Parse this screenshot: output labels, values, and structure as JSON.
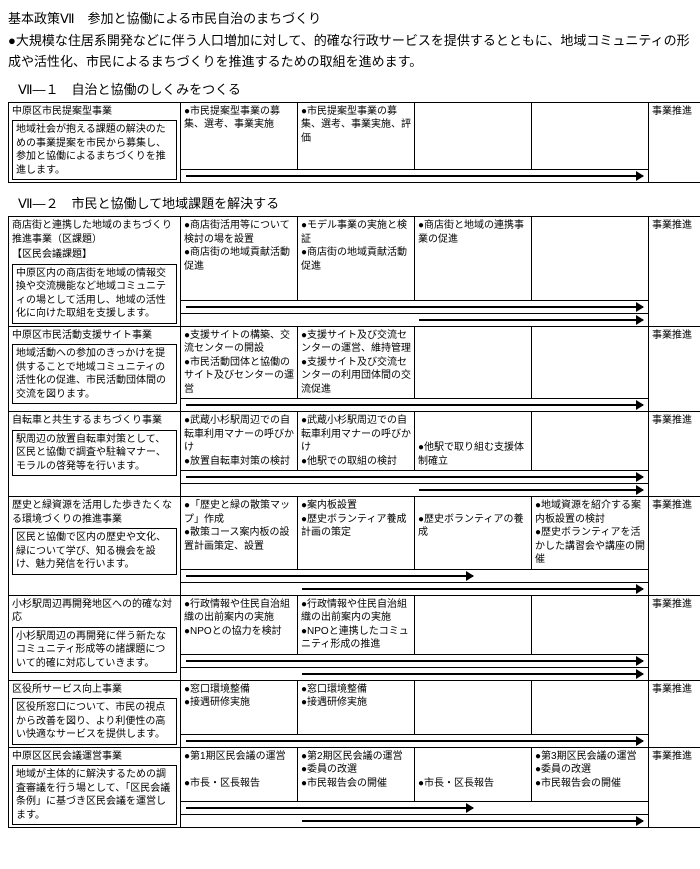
{
  "header": "基本政策Ⅶ　参加と協働による市民自治のまちづくり",
  "intro": "●大規模な住居系開発などに伴う人口増加に対して、的確な行政サービスを提供するとともに、地域コミュニティの形成や活性化、市民によるまちづくりを推進するための取組を進めます。",
  "sub1": "Ⅶ―１　自治と協働のしくみをつくる",
  "sub2": "Ⅶ―２　市民と協働して地域課題を解決する",
  "t1": {
    "rows": [
      {
        "title": "中原区市民提案型事業",
        "desc": "地域社会が抱える課題の解決のための事業提案を市民から募集し、参加と協働によるまちづくりを推進します。",
        "c1": "●市民提案型事業の募集、選考、事業実施",
        "c2": "●市民提案型事業の募集、選考、事業実施、評価",
        "c3": "",
        "c4": "",
        "c5": "事業推進",
        "arrows": [
          {
            "span": "1-5"
          }
        ]
      }
    ]
  },
  "t2": {
    "rows": [
      {
        "title": "商店街と連携した地域のまちづくり推進事業（区課題）",
        "tag": "【区民会議課題】",
        "desc": "中原区内の商店街を地域の情報交換や交流機能など地域コミュニティの場として活用し、地域の活性化に向けた取組を支援します。",
        "c1": "●商店街活用等について検討の場を設置\n●商店街の地域貢献活動促進",
        "c2": "●モデル事業の実施と検証\n●商店街の地域貢献活動促進",
        "c3": "●商店街と地域の連携事業の促進",
        "c4": "",
        "c5": "事業推進",
        "arrows": [
          {
            "span": "1-5"
          },
          {
            "span": "3-5"
          }
        ]
      },
      {
        "title": "中原区市民活動支援サイト事業",
        "desc": "地域活動への参加のきっかけを提供することで地域コミュニティの活性化の促進、市民活動団体間の交流を図ります。",
        "c1": "●支援サイトの構築、交流センターの開設\n●市民活動団体と協働のサイト及びセンターの運営",
        "c2": "●支援サイト及び交流センターの運営、維持管理\n●支援サイト及び交流センターの利用団体間の交流促進",
        "c3": "",
        "c4": "",
        "c5": "事業推進",
        "arrows": [
          {
            "span": "1-5"
          }
        ]
      },
      {
        "title": "自転車と共生するまちづくり事業",
        "desc": "駅周辺の放置自転車対策として、区民と協働で調査や駐輪マナー、モラルの啓発等を行います。",
        "c1": "●武蔵小杉駅周辺での自転車利用マナーの呼びかけ\n●放置自転車対策の検討",
        "c2": "●武蔵小杉駅周辺での自転車利用マナーの呼びかけ\n●他駅での取組の検討",
        "c3": "\n\n●他駅で取り組む支援体制確立",
        "c4": "",
        "c5": "事業推進",
        "arrows": [
          {
            "span": "1-5"
          },
          {
            "span": "3-5"
          }
        ]
      },
      {
        "title": "歴史と緑資源を活用した歩きたくなる環境づくりの推進事業",
        "desc": "区民と協働で区内の歴史や文化、緑について学び、知る機会を設け、魅力発信を行います。",
        "c1": "●「歴史と緑の散策マップ」作成\n●散策コース案内板の設置計画策定、設置",
        "c2": "●案内板設置\n●歴史ボランティア養成計画の策定",
        "c3": "\n●歴史ボランティアの養成",
        "c4": "●地域資源を紹介する案内板設置の検討\n●歴史ボランティアを活かした講習会や講座の開催",
        "c5": "事業推進",
        "arrows": [
          {
            "span": "1-3",
            "short": true
          },
          {
            "span": "2-5"
          }
        ]
      },
      {
        "title": "小杉駅周辺再開発地区への的確な対応",
        "desc": "小杉駅周辺の再開発に伴う新たなコミュニティ形成等の諸課題について的確に対応していきます。",
        "c1": "●行政情報や住民自治組織の出前案内の実施\n●NPOとの協力を検討",
        "c2": "●行政情報や住民自治組織の出前案内の実施\n●NPOと連携したコミュニティ形成の推進",
        "c3": "",
        "c4": "",
        "c5": "事業推進",
        "arrows": [
          {
            "span": "1-5"
          },
          {
            "span": "2-5"
          }
        ]
      },
      {
        "title": "区役所サービス向上事業",
        "desc": "区役所窓口について、市民の視点から改善を図り、より利便性の高い快適なサービスを提供します。",
        "c1": "●窓口環境整備\n●接遇研修実施",
        "c2": "●窓口環境整備\n●接遇研修実施",
        "c3": "",
        "c4": "",
        "c5": "事業推進",
        "arrows": [
          {
            "span": "1-5"
          }
        ]
      },
      {
        "title": "中原区区民会議運営事業",
        "desc": "地域が主体的に解決するための調査審議を行う場として、「区民会議条例」に基づき区民会議を運営します。",
        "c1": "●第1期区民会議の運営\n\n●市長・区長報告",
        "c2": "●第2期区民会議の運営\n●委員の改選\n●市民報告会の開催",
        "c3": "\n\n●市長・区長報告",
        "c4": "●第3期区民会議の運営\n●委員の改選\n●市民報告会の開催",
        "c5": "事業推進",
        "arrows": [
          {
            "span": "1-3",
            "short": true
          },
          {
            "span": "2-5"
          }
        ]
      }
    ]
  }
}
